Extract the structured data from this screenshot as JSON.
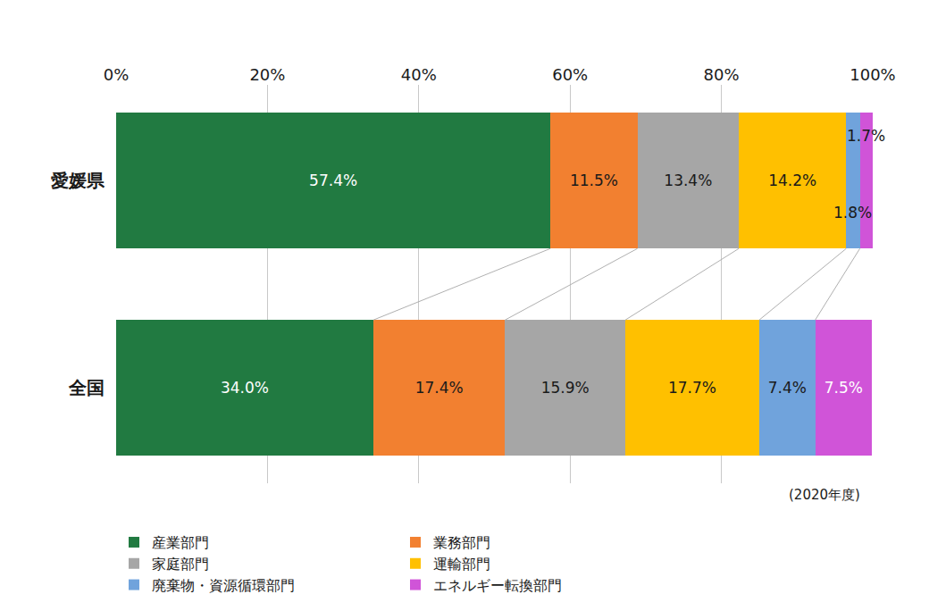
{
  "chart_data": {
    "type": "bar",
    "orientation": "horizontal",
    "stacked": true,
    "data_labels": true,
    "grid": true,
    "legend": "bottom",
    "categories": [
      "愛媛県",
      "全国"
    ],
    "xlim": [
      0,
      100
    ],
    "xticks": [
      {
        "value": 0,
        "label": "0%"
      },
      {
        "value": 20,
        "label": "20%"
      },
      {
        "value": 40,
        "label": "40%"
      },
      {
        "value": 60,
        "label": "60%"
      },
      {
        "value": 80,
        "label": "80%"
      },
      {
        "value": 100,
        "label": "100%"
      }
    ],
    "annotations": [
      "(2020年度)"
    ],
    "series": [
      {
        "name": "産業部門",
        "color": "#217a41",
        "values": [
          57.4,
          34.0
        ],
        "value_labels": [
          "57.4%",
          "34.0%"
        ]
      },
      {
        "name": "業務部門",
        "color": "#f28030",
        "values": [
          11.5,
          17.4
        ],
        "value_labels": [
          "11.5%",
          "17.4%"
        ]
      },
      {
        "name": "家庭部門",
        "color": "#a6a6a6",
        "values": [
          13.4,
          15.9
        ],
        "value_labels": [
          "13.4%",
          "15.9%"
        ]
      },
      {
        "name": "運輸部門",
        "color": "#ffc000",
        "values": [
          14.2,
          17.7
        ],
        "value_labels": [
          "14.2%",
          "17.7%"
        ]
      },
      {
        "name": "廃棄物・資源循環部門",
        "color": "#70a3dc",
        "values": [
          1.8,
          7.4
        ],
        "value_labels": [
          "1.8%",
          "7.4%"
        ]
      },
      {
        "name": "エネルギー転換部門",
        "color": "#d054d8",
        "values": [
          1.7,
          7.5
        ],
        "value_labels": [
          "1.7%",
          "7.5%"
        ]
      }
    ]
  }
}
